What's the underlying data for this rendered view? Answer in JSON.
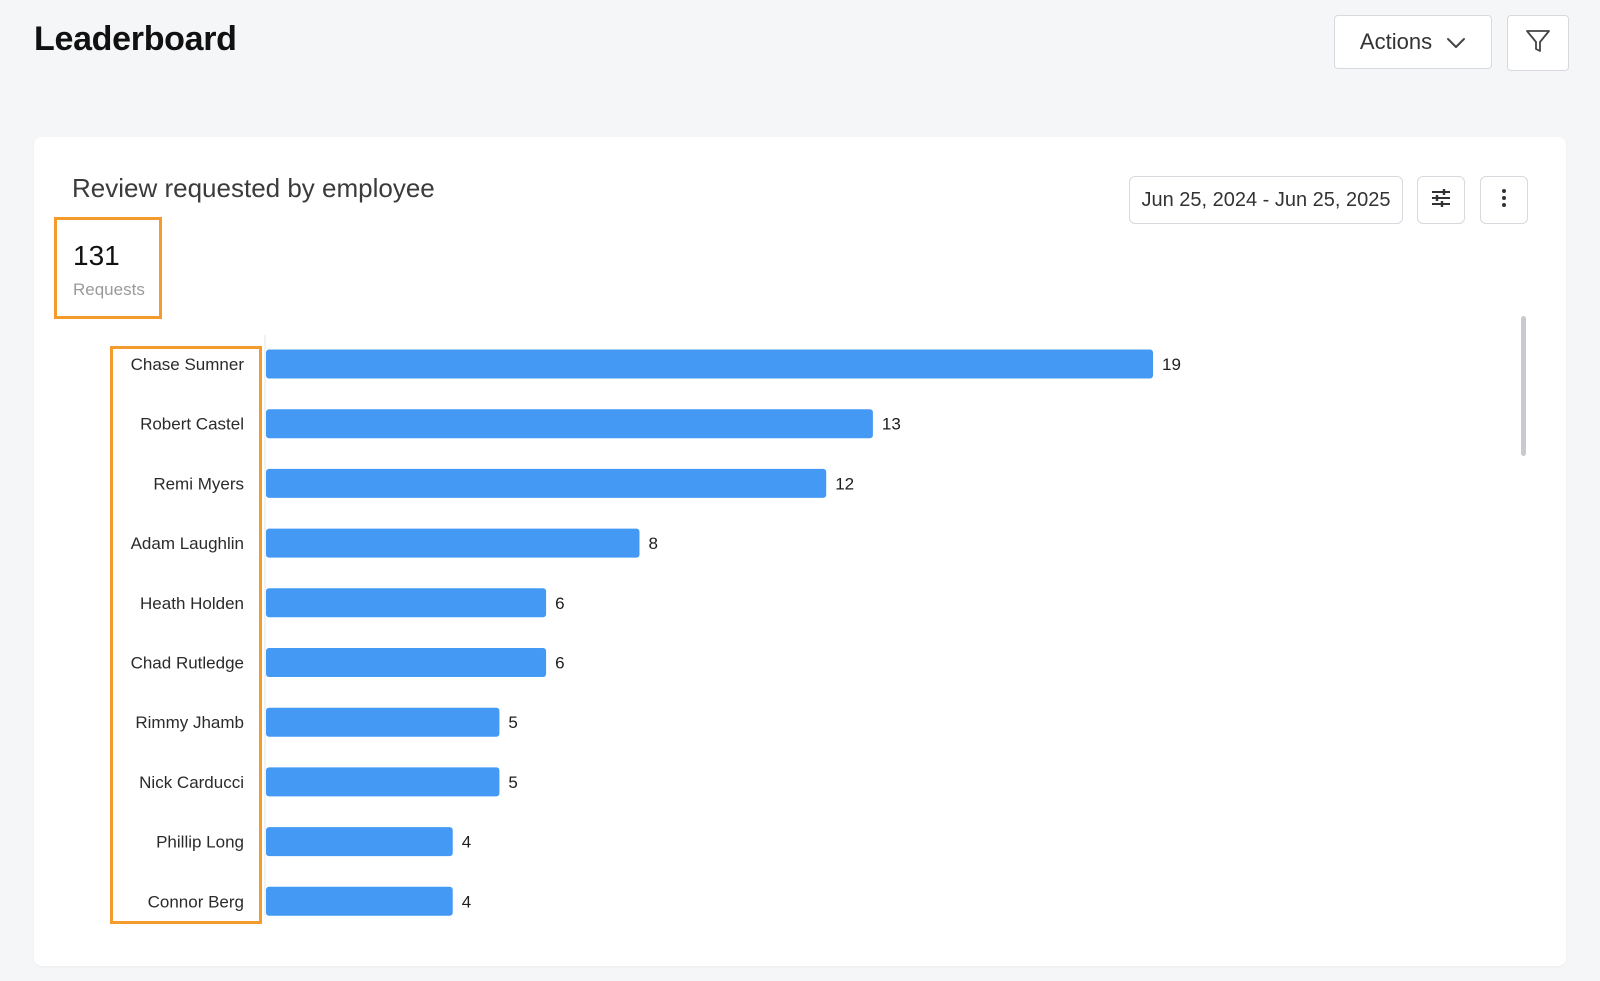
{
  "header": {
    "title": "Leaderboard",
    "actions_label": "Actions"
  },
  "card": {
    "title": "Review requested by employee",
    "date_range": "Jun 25, 2024 - Jun 25, 2025",
    "metric": {
      "value": "131",
      "label": "Requests"
    }
  },
  "colors": {
    "bar": "#4499f5",
    "highlight": "#f39c2b"
  },
  "chart_data": {
    "type": "bar",
    "orientation": "horizontal",
    "title": "Review requested by employee",
    "categories": [
      "Chase Sumner",
      "Robert Castel",
      "Remi Myers",
      "Adam Laughlin",
      "Heath Holden",
      "Chad Rutledge",
      "Rimmy Jhamb",
      "Nick Carducci",
      "Phillip Long",
      "Connor Berg"
    ],
    "values": [
      19,
      13,
      12,
      8,
      6,
      6,
      5,
      5,
      4,
      4
    ],
    "xlim": [
      0,
      19
    ],
    "grid": false,
    "data_labels": true
  }
}
